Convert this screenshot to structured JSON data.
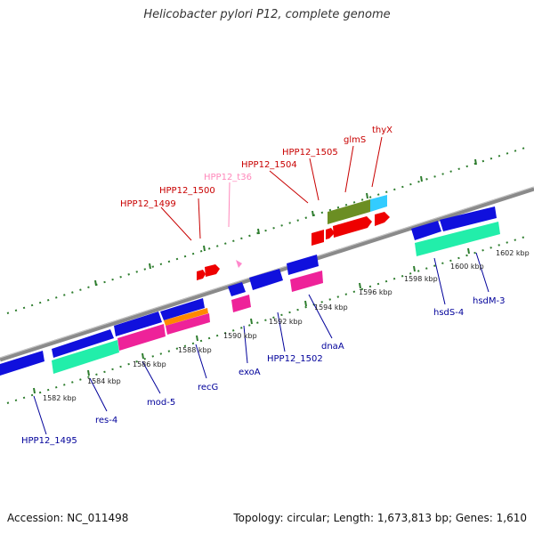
{
  "title": "Helicobacter pylori P12, complete genome",
  "footer": {
    "accession": "Accession: NC_011498",
    "topology": "Topology: circular; Length: 1,673,813 bp; Genes: 1,610"
  },
  "colors": {
    "backbone": "#888888",
    "tick": "#2e7d2e",
    "forward_label": "#c80000",
    "rna_label": "#ff88bb",
    "reverse_label": "#00009a"
  },
  "kbp_labels": [
    "1582 kbp",
    "1584 kbp",
    "1586 kbp",
    "1588 kbp",
    "1590 kbp",
    "1592 kbp",
    "1594 kbp",
    "1596 kbp",
    "1598 kbp",
    "1600 kbp",
    "1602 kbp"
  ],
  "forward_gene_labels": [
    "HPP12_1499",
    "HPP12_1500",
    "HPP12_1504",
    "HPP12_1505",
    "glmS",
    "thyX"
  ],
  "rna_gene_labels": [
    "HPP12_t36"
  ],
  "reverse_gene_labels": [
    "HPP12_1495",
    "res-4",
    "mod-5",
    "recG",
    "exoA",
    "HPP12_1502",
    "dnaA",
    "hsdS-4",
    "hsdM-3"
  ]
}
